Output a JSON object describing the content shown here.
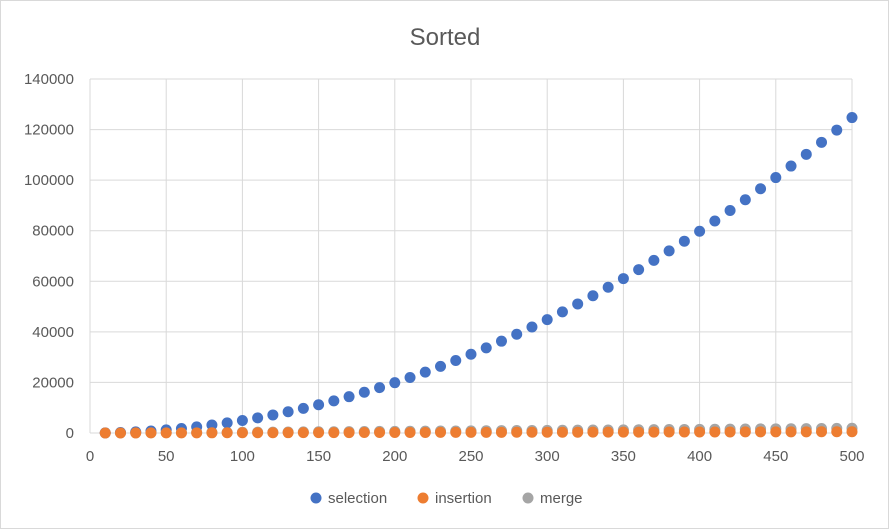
{
  "chart_data": {
    "type": "scatter",
    "title": "Sorted",
    "xlabel": "",
    "ylabel": "",
    "xlim": [
      0,
      500
    ],
    "ylim": [
      0,
      140000
    ],
    "xticks": [
      0,
      50,
      100,
      150,
      200,
      250,
      300,
      350,
      400,
      450,
      500
    ],
    "yticks": [
      0,
      20000,
      40000,
      60000,
      80000,
      100000,
      120000,
      140000
    ],
    "grid": true,
    "legend_position": "bottom",
    "x": [
      10,
      20,
      30,
      40,
      50,
      60,
      70,
      80,
      90,
      100,
      110,
      120,
      130,
      140,
      150,
      160,
      170,
      180,
      190,
      200,
      210,
      220,
      230,
      240,
      250,
      260,
      270,
      280,
      290,
      300,
      310,
      320,
      330,
      340,
      350,
      360,
      370,
      380,
      390,
      400,
      410,
      420,
      430,
      440,
      450,
      460,
      470,
      480,
      490,
      500
    ],
    "series": [
      {
        "name": "selection",
        "color": "#4472c4",
        "values": [
          45,
          190,
          435,
          780,
          1225,
          1770,
          2415,
          3160,
          4005,
          4950,
          5995,
          7140,
          8385,
          9730,
          11175,
          12720,
          14365,
          16110,
          17955,
          19900,
          21945,
          24090,
          26335,
          28680,
          31125,
          33670,
          36315,
          39060,
          41905,
          44850,
          47895,
          51040,
          54285,
          57630,
          61075,
          64620,
          68265,
          72010,
          75855,
          79800,
          83845,
          87990,
          92235,
          96580,
          101025,
          105570,
          110215,
          114960,
          119805,
          124750
        ]
      },
      {
        "name": "insertion",
        "color": "#ed7d31",
        "values": [
          9,
          19,
          29,
          39,
          49,
          59,
          69,
          79,
          89,
          99,
          109,
          119,
          129,
          139,
          149,
          159,
          169,
          179,
          189,
          199,
          209,
          219,
          229,
          239,
          249,
          259,
          269,
          279,
          289,
          299,
          309,
          319,
          329,
          339,
          349,
          359,
          369,
          379,
          389,
          399,
          409,
          419,
          429,
          439,
          449,
          459,
          469,
          479,
          489,
          499
        ]
      },
      {
        "name": "merge",
        "color": "#a5a5a5",
        "values": [
          15,
          40,
          65,
          95,
          130,
          160,
          190,
          225,
          260,
          300,
          330,
          365,
          400,
          435,
          475,
          510,
          545,
          580,
          620,
          660,
          695,
          730,
          770,
          810,
          850,
          890,
          930,
          965,
          1005,
          1045,
          1085,
          1125,
          1165,
          1205,
          1245,
          1285,
          1325,
          1365,
          1405,
          1450,
          1490,
          1530,
          1570,
          1615,
          1655,
          1695,
          1740,
          1780,
          1820,
          1865
        ]
      }
    ]
  }
}
